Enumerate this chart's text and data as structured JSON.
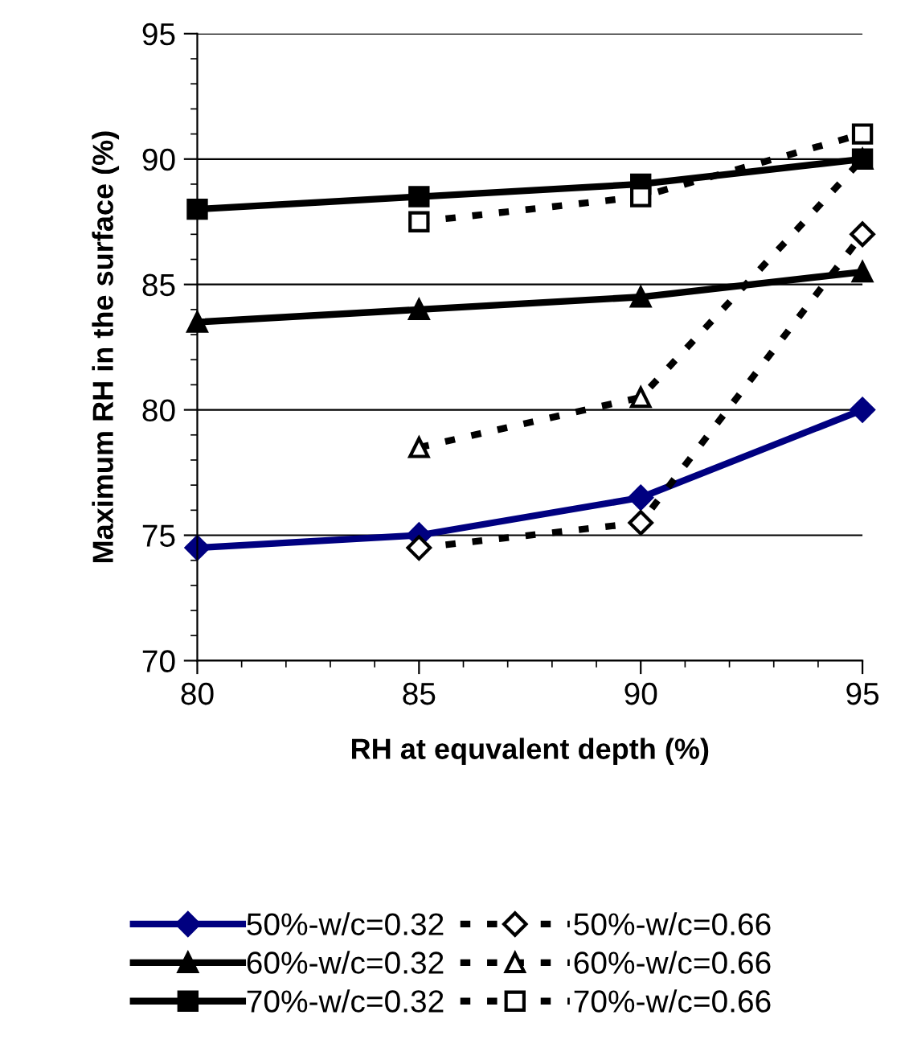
{
  "chart_data": {
    "type": "line",
    "xlabel": "RH at equvalent depth (%)",
    "ylabel": "Maximum RH in the surface (%)",
    "x": [
      80,
      85,
      90,
      95
    ],
    "xlim": [
      80,
      95
    ],
    "xticks": [
      80,
      85,
      90,
      95
    ],
    "ylim": [
      70,
      95
    ],
    "yticks": [
      70,
      75,
      80,
      85,
      90,
      95
    ],
    "grid": "y",
    "legend": "bottom",
    "series": [
      {
        "name": "50%-w/c=0.32",
        "color": "#000080",
        "marker": "diamond",
        "line_style": "solid",
        "values": [
          74.5,
          75,
          76.5,
          80
        ]
      },
      {
        "name": "50%-w/c=0.66",
        "color": "#000000",
        "marker": "diamond",
        "line_style": "dashed",
        "x": [
          85,
          90,
          95
        ],
        "values": [
          74.5,
          75.5,
          87
        ]
      },
      {
        "name": "60%-w/c=0.32",
        "color": "#000000",
        "marker": "triangle",
        "line_style": "solid",
        "values": [
          83.5,
          84,
          84.5,
          85.5
        ]
      },
      {
        "name": "60%-w/c=0.66",
        "color": "#000000",
        "marker": "triangle",
        "line_style": "dashed",
        "x": [
          85,
          90,
          95
        ],
        "values": [
          78.5,
          80.5,
          90
        ]
      },
      {
        "name": "70%-w/c=0.32",
        "color": "#000000",
        "marker": "square",
        "line_style": "solid",
        "values": [
          88,
          88.5,
          89,
          90
        ]
      },
      {
        "name": "70%-w/c=0.66",
        "color": "#000000",
        "marker": "square",
        "line_style": "dashed",
        "x": [
          85,
          90,
          95
        ],
        "values": [
          87.5,
          88.5,
          91
        ]
      }
    ]
  }
}
